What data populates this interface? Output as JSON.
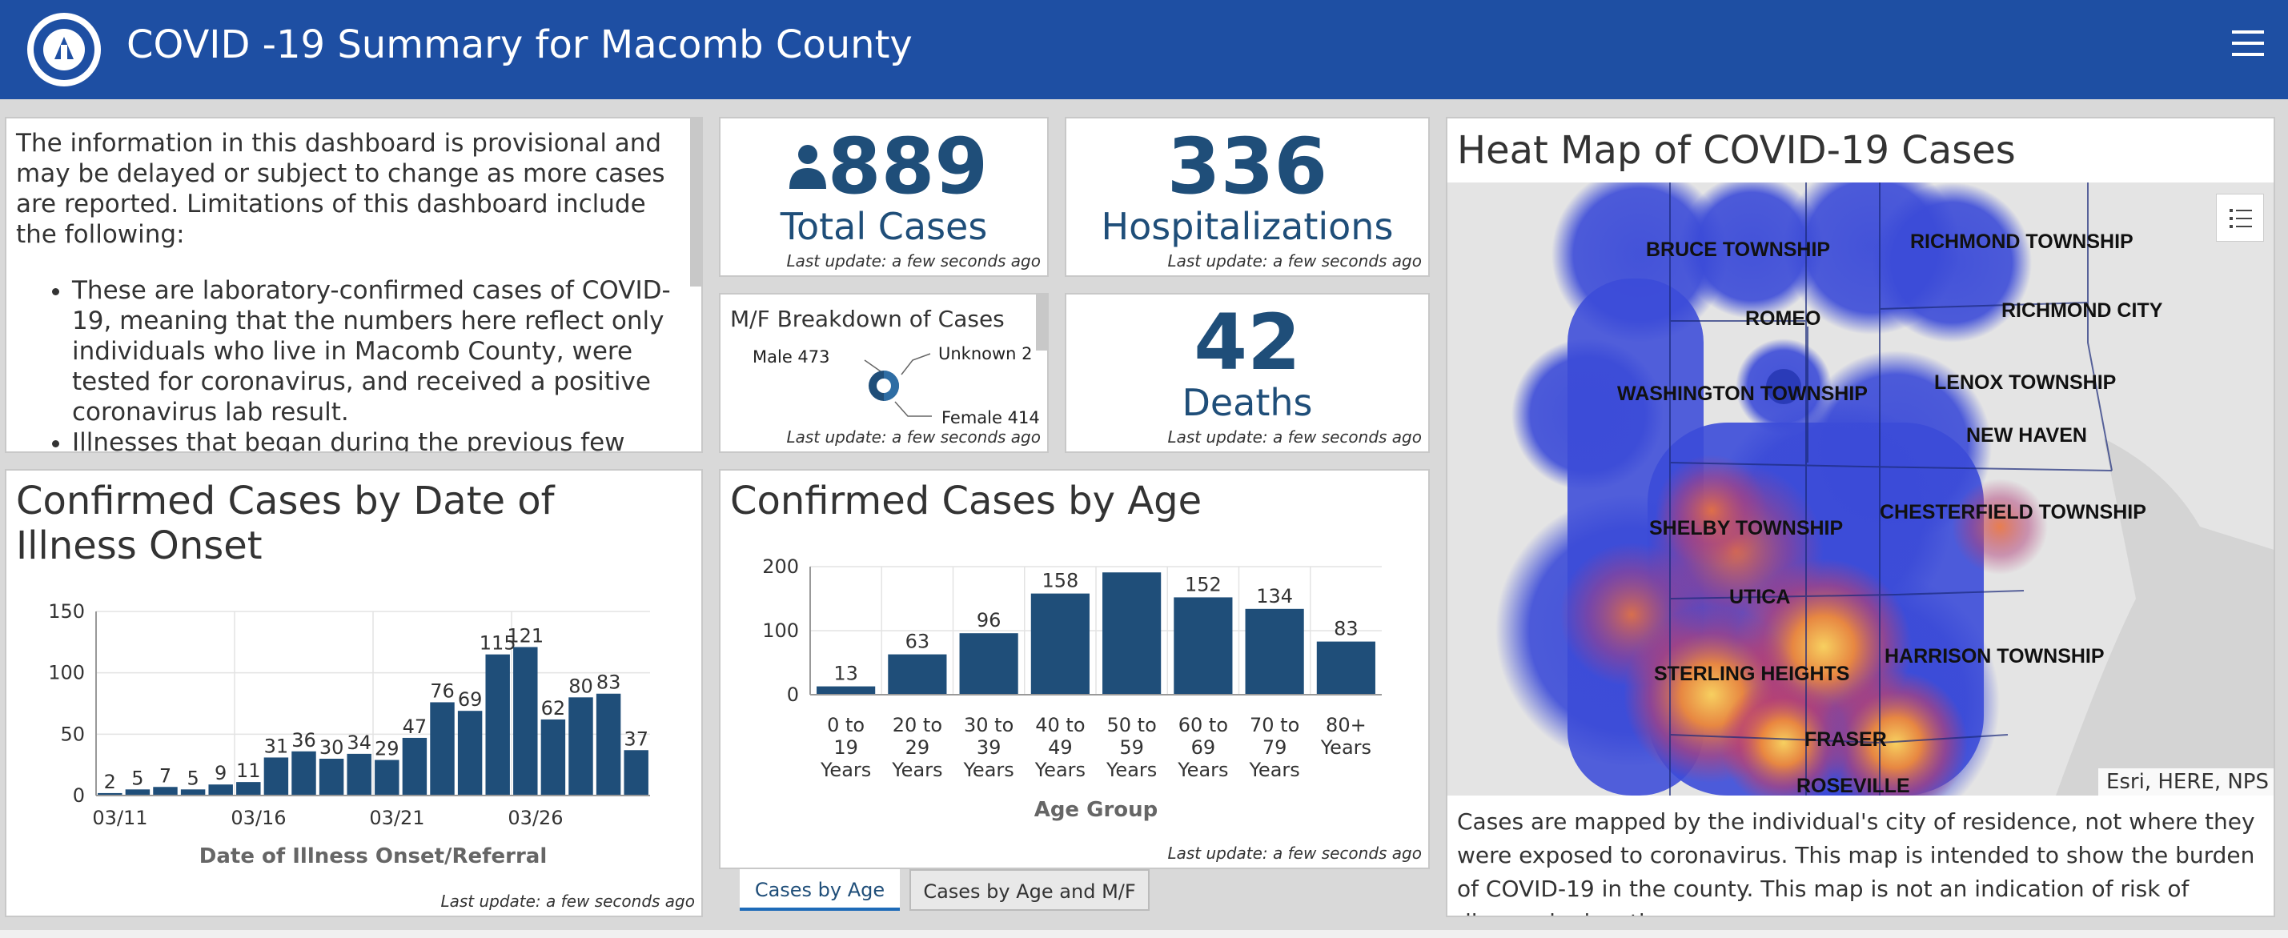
{
  "header": {
    "title": "COVID -19 Summary for Macomb County",
    "logo_icon": "macomb-county-seal",
    "menu_icon": "hamburger-icon"
  },
  "info": {
    "intro": "The information in this dashboard is provisional and may be delayed or subject to change as more cases are reported. Limitations of this dashboard include the following:",
    "bullets": [
      "These are laboratory-confirmed cases of COVID-19, meaning that the numbers here reflect only individuals who live in Macomb County, were tested for coronavirus, and received a positive coronavirus lab result.",
      "Illnesses that began during the previous few days"
    ]
  },
  "kpis": {
    "total_cases": {
      "value": "889",
      "label": "Total Cases",
      "icon": "person-icon",
      "update": "Last update: a few seconds ago"
    },
    "hospitalizations": {
      "value": "336",
      "label": "Hospitalizations",
      "update": "Last update: a few seconds ago"
    },
    "deaths": {
      "value": "42",
      "label": "Deaths",
      "update": "Last update: a few seconds ago"
    }
  },
  "mf": {
    "title": "M/F Breakdown of Cases",
    "male": "Male 473",
    "unknown": "Unknown 2",
    "female": "Female 414",
    "update": "Last update: a few seconds ago"
  },
  "onset": {
    "update": "Last update: a few seconds ago",
    "chart_data": {
      "type": "bar",
      "title": "Confirmed Cases by Date of Illness Onset",
      "xlabel": "Date of Illness Onset/Referral",
      "ylabel": "",
      "ylim": [
        0,
        150
      ],
      "yticks": [
        "0",
        "50",
        "100",
        "150"
      ],
      "xticks": [
        "03/11",
        "03/16",
        "03/21",
        "03/26"
      ],
      "xtick_index": [
        0,
        5,
        10,
        15
      ],
      "values": [
        2,
        5,
        7,
        5,
        9,
        11,
        31,
        36,
        30,
        34,
        29,
        47,
        76,
        69,
        115,
        121,
        62,
        80,
        83,
        37
      ],
      "color": "#1f4e79"
    }
  },
  "age": {
    "update": "Last update: a few seconds ago",
    "tabs": [
      "Cases by Age",
      "Cases by Age and M/F"
    ],
    "chart_data": {
      "type": "bar",
      "title": "Confirmed Cases by Age",
      "xlabel": "Age Group",
      "ylabel": "",
      "ylim": [
        0,
        200
      ],
      "yticks": [
        "0",
        "100",
        "200"
      ],
      "categories": [
        "0 to\n19\nYears",
        "20 to\n29\nYears",
        "30 to\n39\nYears",
        "40 to\n49\nYears",
        "50 to\n59\nYears",
        "60 to\n69\nYears",
        "70 to\n79\nYears",
        "80+\nYears"
      ],
      "values": [
        13,
        63,
        96,
        158,
        191,
        152,
        134,
        83
      ],
      "labels": [
        "13",
        "63",
        "96",
        "158",
        "",
        "152",
        "134",
        "83"
      ],
      "color": "#1f4e79"
    }
  },
  "map": {
    "title": "Heat Map of COVID-19 Cases",
    "attribution": "Esri, HERE, NPS",
    "legend_icon": "legend-list-icon",
    "places": [
      "BRUCE TOWNSHIP",
      "RICHMOND TOWNSHIP",
      "ROMEO",
      "RICHMOND CITY",
      "WASHINGTON TOWNSHIP",
      "LENOX TOWNSHIP",
      "NEW HAVEN",
      "SHELBY TOWNSHIP",
      "CHESTERFIELD TOWNSHIP",
      "UTICA",
      "HARRISON TOWNSHIP",
      "STERLING HEIGHTS",
      "FRASER",
      "ROSEVILLE"
    ],
    "description": "Cases are mapped by the individual's city of residence, not where they were exposed to coronavirus. This map is intended to show the burden of COVID-19 in the county. This map is not an indication of risk of disease by location."
  }
}
